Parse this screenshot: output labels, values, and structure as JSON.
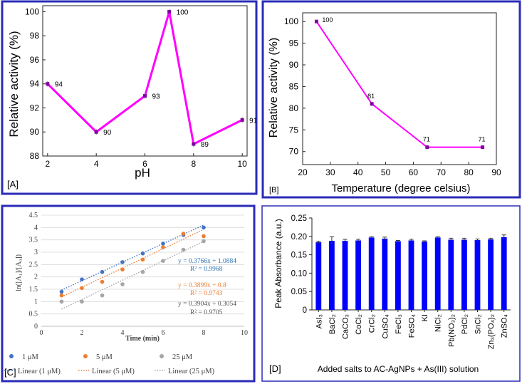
{
  "chart_data": [
    {
      "panel": "[A]",
      "type": "line",
      "x": [
        2,
        4,
        6,
        7,
        8,
        10
      ],
      "values": [
        94,
        90,
        93,
        100,
        89,
        91
      ],
      "data_labels": [
        "94",
        "90",
        "93",
        "100",
        "89",
        "91"
      ],
      "xlabel": "pH",
      "ylabel": "Relative activity (%)",
      "xlim": [
        1.8,
        10.2
      ],
      "ylim": [
        88,
        100.5
      ],
      "xticks": [
        "2",
        "4",
        "6",
        "8",
        "10"
      ],
      "yticks": [
        "88",
        "90",
        "92",
        "94",
        "96",
        "98",
        "100"
      ],
      "color": "#ff00ff"
    },
    {
      "panel": "[B]",
      "type": "line",
      "x": [
        25,
        45,
        65,
        85
      ],
      "values": [
        100,
        81,
        71,
        71
      ],
      "data_labels": [
        "100",
        "81",
        "71",
        "71"
      ],
      "xlabel": "Temperature (degree celsius)",
      "ylabel": "Relative activity (%)",
      "xlim": [
        20,
        90
      ],
      "ylim": [
        67,
        102
      ],
      "xticks": [
        "20",
        "30",
        "40",
        "50",
        "60",
        "70",
        "80",
        "90"
      ],
      "yticks": [
        "70",
        "75",
        "80",
        "85",
        "90",
        "95",
        "100"
      ],
      "color": "#ff00ff"
    },
    {
      "panel": "[C]",
      "type": "scatter",
      "xlabel": "Time (min)",
      "ylabel": "ln([A₁]/[A₀])",
      "xlim": [
        0,
        10
      ],
      "ylim": [
        0,
        4.5
      ],
      "xticks": [
        "0",
        "2",
        "4",
        "6",
        "8",
        "10"
      ],
      "yticks": [
        "0",
        "0.5",
        "1",
        "1.5",
        "2",
        "2.5",
        "3",
        "3.5",
        "4",
        "4.5"
      ],
      "x": [
        1,
        2,
        3,
        4,
        5,
        6,
        7,
        8
      ],
      "series": [
        {
          "name": "1 μM",
          "values": [
            1.4,
            1.9,
            2.2,
            2.6,
            2.95,
            3.35,
            3.7,
            4.0
          ],
          "color": "#4472c4",
          "fit": {
            "slope": 0.3766,
            "intercept": 1.0884
          },
          "trend_name": "Linear (1 μM)",
          "equation": "y = 0.3766x + 1.0884",
          "r2": "R² = 0.9968"
        },
        {
          "name": "5 μM",
          "values": [
            1.25,
            1.55,
            1.8,
            2.3,
            2.7,
            3.2,
            3.75,
            3.65
          ],
          "color": "#ed7d31",
          "fit": {
            "slope": 0.3899,
            "intercept": 0.8
          },
          "trend_name": "Linear (5 μM)",
          "equation": "y = 0.3899x + 0.8",
          "r2": "R² = 0.9743"
        },
        {
          "name": "25 μM",
          "values": [
            1.0,
            1.0,
            1.25,
            1.7,
            2.2,
            2.65,
            3.1,
            3.45
          ],
          "color": "#a5a5a5",
          "fit": {
            "slope": 0.3904,
            "intercept": 0.3054
          },
          "trend_name": "Linear (25 μM)",
          "equation": "y = 0.3904x + 0.3054",
          "r2": "R² = 0.9705"
        }
      ]
    },
    {
      "panel": "[D]",
      "type": "bar",
      "categories": [
        "AsI₃",
        "BaCl₂",
        "CaCO₃",
        "CoCl₂",
        "CrCl₂",
        "CuSO₄",
        "FeCl₃",
        "FeSO₄",
        "KI",
        "NiCl₂",
        "Pb(NO₃)₂",
        "PdCl₂",
        "SnCl₂",
        "Zn₃(PO₄)₂",
        "ZnSO₄"
      ],
      "values": [
        0.184,
        0.188,
        0.188,
        0.189,
        0.197,
        0.194,
        0.187,
        0.189,
        0.186,
        0.197,
        0.191,
        0.191,
        0.19,
        0.192,
        0.198
      ],
      "errors": [
        0.003,
        0.011,
        0.004,
        0.003,
        0.002,
        0.004,
        0.002,
        0.003,
        0.002,
        0.002,
        0.004,
        0.004,
        0.003,
        0.003,
        0.006
      ],
      "xlabel": "Added salts to AC-AgNPs + As(III) solution",
      "ylabel": "Peak Absorbance (a.u.)",
      "ylim": [
        0,
        0.25
      ],
      "yticks": [
        "0",
        "0.05",
        "0.10",
        "0.15",
        "0.20",
        "0.25"
      ],
      "color": "#0000ff"
    }
  ]
}
